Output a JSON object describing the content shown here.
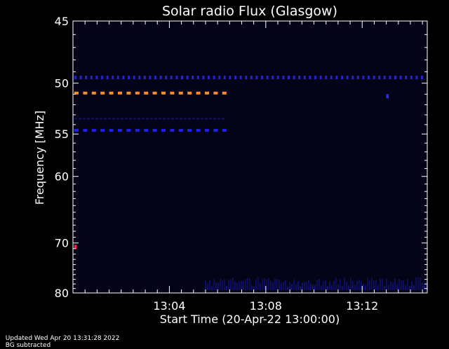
{
  "footer": {
    "updated": "Updated Wed Apr 20 13:31:28 2022",
    "note": "BG subtracted"
  },
  "chart_data": {
    "type": "heatmap",
    "title": "Solar radio Flux (Glasgow)",
    "xlabel": "Start Time (20-Apr-22 13:00:00)",
    "ylabel": "Frequency [MHz]",
    "x_ticks": [
      {
        "minute": 4,
        "label": "13:04"
      },
      {
        "minute": 8,
        "label": "13:08"
      },
      {
        "minute": 12,
        "label": "13:12"
      }
    ],
    "y_ticks": [
      {
        "mhz": 45,
        "label": "45"
      },
      {
        "mhz": 50,
        "label": "50"
      },
      {
        "mhz": 55,
        "label": "55"
      },
      {
        "mhz": 60,
        "label": "60"
      },
      {
        "mhz": 70,
        "label": "70"
      },
      {
        "mhz": 80,
        "label": "80"
      }
    ],
    "xlim_minutes": [
      0,
      14.7
    ],
    "ylim_mhz": [
      45,
      80
    ],
    "y_scale": "reciprocal",
    "background_color": "#040418",
    "features": [
      {
        "name": "interference-50.9MHz",
        "mhz": 50.9,
        "t_start": 0.0,
        "t_end": 6.3,
        "color": "#ff8c28",
        "pattern": "dashed"
      },
      {
        "name": "interference-49.5MHz",
        "mhz": 49.5,
        "t_start": 0.0,
        "t_end": 14.7,
        "color": "#2828e6",
        "pattern": "dotted"
      },
      {
        "name": "interference-54.6MHz",
        "mhz": 54.6,
        "t_start": 0.0,
        "t_end": 6.3,
        "color": "#2020ee",
        "pattern": "dashed"
      },
      {
        "name": "interference-53.4MHz",
        "mhz": 53.4,
        "t_start": 0.0,
        "t_end": 6.3,
        "color": "#141478",
        "pattern": "faint"
      },
      {
        "name": "spot-70.7MHz",
        "mhz": 70.7,
        "t_start": 0.05,
        "t_end": 0.15,
        "color": "#ff2050",
        "pattern": "spot"
      },
      {
        "name": "spot-51.2MHz",
        "mhz": 51.2,
        "t_start": 13.0,
        "t_end": 13.1,
        "color": "#2030ff",
        "pattern": "spot"
      }
    ],
    "noise_region": {
      "t_start": 5.5,
      "t_end": 14.7,
      "mhz_start": 76.5,
      "mhz_end": 80,
      "color": "#1a1ab0"
    }
  }
}
